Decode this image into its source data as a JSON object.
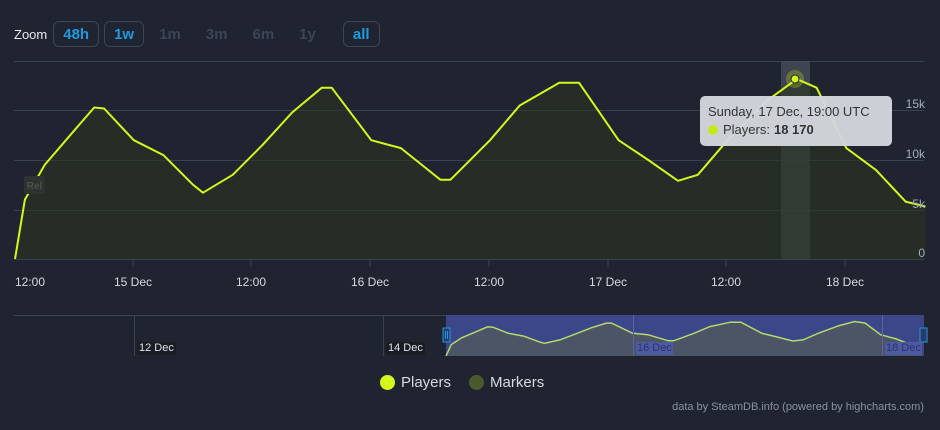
{
  "zoom": {
    "label": "Zoom",
    "buttons": [
      {
        "label": "48h",
        "state": "active"
      },
      {
        "label": "1w",
        "state": "active"
      },
      {
        "label": "1m",
        "state": "disabled"
      },
      {
        "label": "3m",
        "state": "disabled"
      },
      {
        "label": "6m",
        "state": "disabled"
      },
      {
        "label": "1y",
        "state": "disabled"
      },
      {
        "label": "all",
        "state": "active"
      }
    ]
  },
  "colors": {
    "background": "#1f2430",
    "players_line": "#d4f71c",
    "markers": "#4a5a2e",
    "accent": "#1e9be0",
    "navigator_mask": "#3c478a"
  },
  "tooltip": {
    "title": "Sunday, 17 Dec, 19:00 UTC",
    "series": "Players:",
    "value": "18 170"
  },
  "marker_badge": "Rel",
  "legend": [
    {
      "label": "Players",
      "color": "#d4f71c"
    },
    {
      "label": "Markers",
      "color": "#4a5a2e"
    }
  ],
  "credit": "data by SteamDB.info (powered by highcharts.com)",
  "navigator": {
    "labels": [
      "12 Dec",
      "14 Dec",
      "16 Dec",
      "18 Dec"
    ]
  },
  "chart_data": {
    "type": "line",
    "title": "",
    "xlabel": "",
    "ylabel": "",
    "ylim": [
      0,
      20000
    ],
    "y_ticks": [
      "0",
      "5k",
      "10k",
      "15k"
    ],
    "x_ticks": [
      "12:00",
      "15 Dec",
      "12:00",
      "16 Dec",
      "12:00",
      "17 Dec",
      "12:00",
      "18 Dec"
    ],
    "grid": true,
    "legend_position": "bottom",
    "series": [
      {
        "name": "Players",
        "x": [
          "14 Dec 12:00",
          "14 Dec 13:00",
          "14 Dec 15:00",
          "14 Dec 18:00",
          "14 Dec 20:00",
          "14 Dec 21:00",
          "15 Dec 00:00",
          "15 Dec 03:00",
          "15 Dec 06:00",
          "15 Dec 07:00",
          "15 Dec 10:00",
          "15 Dec 13:00",
          "15 Dec 16:00",
          "15 Dec 19:00",
          "15 Dec 20:00",
          "16 Dec 00:00",
          "16 Dec 03:00",
          "16 Dec 07:00",
          "16 Dec 08:00",
          "16 Dec 12:00",
          "16 Dec 15:00",
          "16 Dec 19:00",
          "16 Dec 21:00",
          "17 Dec 01:00",
          "17 Dec 04:00",
          "17 Dec 07:00",
          "17 Dec 09:00",
          "17 Dec 12:00",
          "17 Dec 16:00",
          "17 Dec 19:00",
          "17 Dec 21:00",
          "18 Dec 00:00",
          "18 Dec 03:00",
          "18 Dec 06:00",
          "18 Dec 08:00"
        ],
        "values": [
          0,
          6000,
          9500,
          13000,
          15300,
          15200,
          12000,
          10500,
          7500,
          6700,
          8500,
          11500,
          14800,
          17300,
          17300,
          12000,
          11200,
          8000,
          8000,
          12000,
          15500,
          17800,
          17800,
          12000,
          10000,
          7900,
          8500,
          12000,
          16000,
          18170,
          17300,
          11200,
          9000,
          5800,
          5300
        ]
      }
    ],
    "highlight": {
      "x": "17 Dec 19:00",
      "value": 18170
    }
  }
}
